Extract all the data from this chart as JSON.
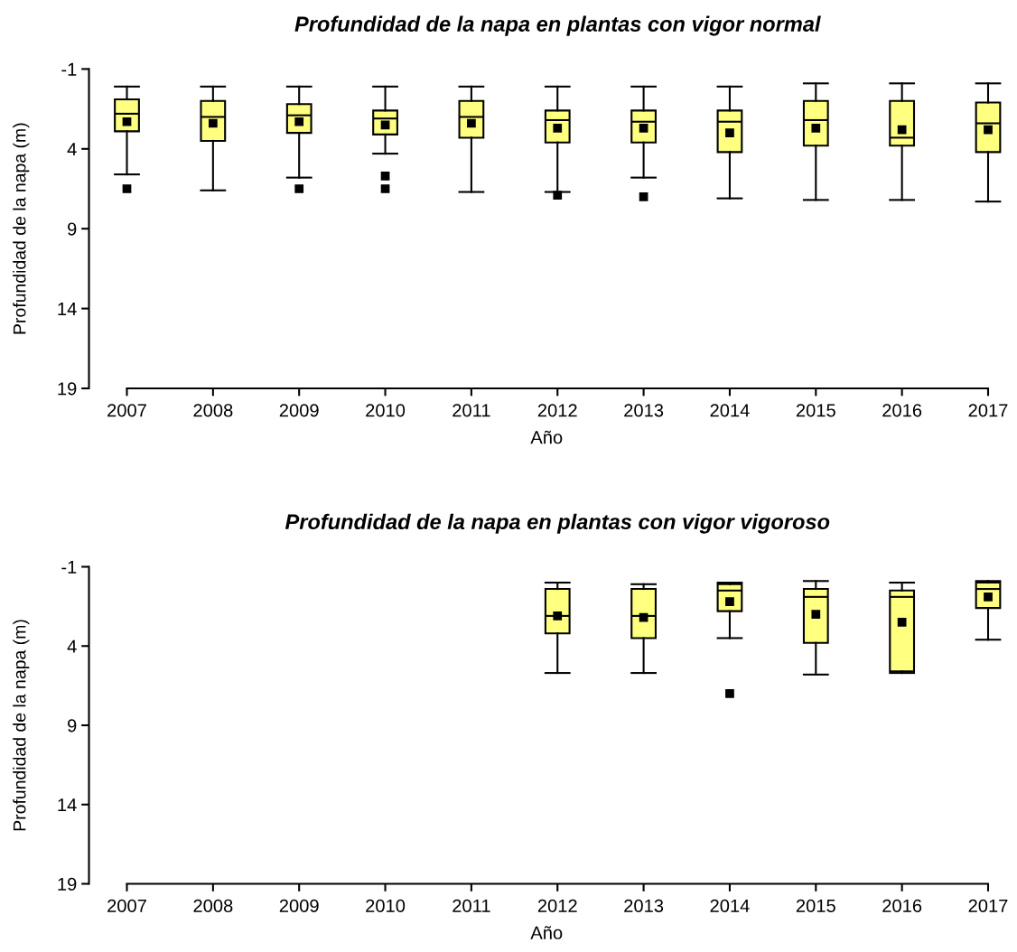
{
  "chart_data": [
    {
      "type": "box",
      "title": "Profundidad de la napa en plantas con vigor normal",
      "xlabel": "Año",
      "ylabel": "Profundidad de la napa (m)",
      "categories": [
        "2007",
        "2008",
        "2009",
        "2010",
        "2011",
        "2012",
        "2013",
        "2014",
        "2015",
        "2016",
        "2017"
      ],
      "ylim": [
        19,
        -1
      ],
      "yticks": [
        -1,
        4,
        9,
        14,
        19
      ],
      "marker": "square",
      "series": [
        {
          "color": "#ffff80",
          "boxes": [
            {
              "low": 0.1,
              "q1": 0.9,
              "median": 1.8,
              "q3": 2.9,
              "high": 5.6,
              "mean": 2.3,
              "outliers": [
                6.5
              ]
            },
            {
              "low": 0.1,
              "q1": 1.0,
              "median": 2.0,
              "q3": 3.5,
              "high": 6.6,
              "mean": 2.4
            },
            {
              "low": 0.1,
              "q1": 1.2,
              "median": 1.9,
              "q3": 3.0,
              "high": 5.8,
              "mean": 2.3,
              "outliers": [
                6.5
              ]
            },
            {
              "low": 0.1,
              "q1": 1.6,
              "median": 2.1,
              "q3": 3.1,
              "high": 4.3,
              "mean": 2.5,
              "outliers": [
                5.7,
                6.5
              ]
            },
            {
              "low": 0.1,
              "q1": 1.0,
              "median": 2.0,
              "q3": 3.3,
              "high": 6.7,
              "mean": 2.4
            },
            {
              "low": 0.1,
              "q1": 1.6,
              "median": 2.2,
              "q3": 3.6,
              "high": 6.7,
              "mean": 2.7,
              "outliers": [
                6.9
              ]
            },
            {
              "low": 0.1,
              "q1": 1.6,
              "median": 2.3,
              "q3": 3.6,
              "high": 5.8,
              "mean": 2.7,
              "outliers": [
                7.0
              ]
            },
            {
              "low": 0.1,
              "q1": 1.6,
              "median": 2.3,
              "q3": 4.2,
              "high": 7.1,
              "mean": 3.0
            },
            {
              "low": -0.1,
              "q1": 1.0,
              "median": 2.2,
              "q3": 3.8,
              "high": 7.2,
              "mean": 2.7
            },
            {
              "low": -0.1,
              "q1": 1.0,
              "median": 3.3,
              "q3": 3.8,
              "high": 7.2,
              "mean": 2.8
            },
            {
              "low": -0.1,
              "q1": 1.1,
              "median": 2.4,
              "q3": 4.2,
              "high": 7.3,
              "mean": 2.8
            }
          ]
        }
      ]
    },
    {
      "type": "box",
      "title": "Profundidad de la napa en plantas con vigor vigoroso",
      "xlabel": "Año",
      "ylabel": "Profundidad de la napa (m)",
      "categories": [
        "2007",
        "2008",
        "2009",
        "2010",
        "2011",
        "2012",
        "2013",
        "2014",
        "2015",
        "2016",
        "2017"
      ],
      "ylim": [
        19,
        -1
      ],
      "yticks": [
        -1,
        4,
        9,
        14,
        19
      ],
      "marker": "square",
      "series": [
        {
          "color": "#ffff80",
          "boxes": [
            null,
            null,
            null,
            null,
            null,
            {
              "low": 0.0,
              "q1": 0.4,
              "median": 2.1,
              "q3": 3.2,
              "high": 5.7,
              "mean": 2.1
            },
            {
              "low": 0.1,
              "q1": 0.4,
              "median": 2.1,
              "q3": 3.5,
              "high": 5.7,
              "mean": 2.2
            },
            {
              "low": 0.0,
              "q1": 0.1,
              "median": 0.5,
              "q3": 1.8,
              "high": 3.5,
              "mean": 1.2,
              "outliers": [
                7.0
              ]
            },
            {
              "low": -0.1,
              "q1": 0.4,
              "median": 0.9,
              "q3": 3.8,
              "high": 5.8,
              "mean": 2.0
            },
            {
              "low": 0.0,
              "q1": 0.5,
              "median": 0.9,
              "q3": 5.6,
              "high": 5.7,
              "mean": 2.5
            },
            {
              "low": -0.1,
              "q1": 0.0,
              "median": 0.4,
              "q3": 1.6,
              "high": 3.6,
              "mean": 0.9
            }
          ]
        }
      ]
    }
  ]
}
